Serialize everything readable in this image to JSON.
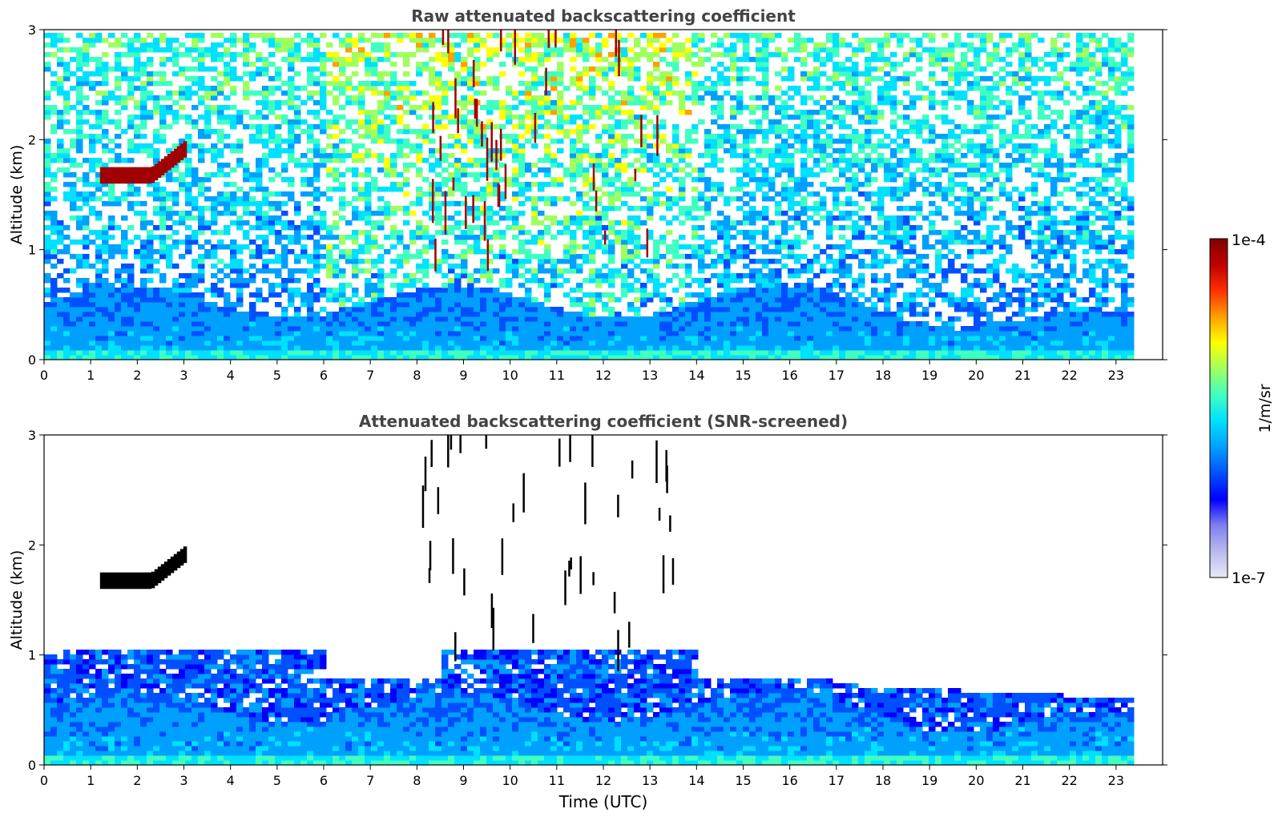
{
  "chart_data": [
    {
      "type": "heatmap",
      "title": "Raw attenuated backscattering coefficient",
      "xlabel": "",
      "ylabel": "Altitude (km)",
      "xlim": [
        0,
        24
      ],
      "ylim": [
        0,
        3
      ],
      "data_x_range": [
        0,
        23.3
      ],
      "xticks": [
        "0",
        "1",
        "2",
        "3",
        "4",
        "5",
        "6",
        "7",
        "8",
        "9",
        "10",
        "11",
        "12",
        "13",
        "14",
        "15",
        "16",
        "17",
        "18",
        "19",
        "20",
        "21",
        "22",
        "23"
      ],
      "yticks": [
        "0",
        "1",
        "2",
        "3"
      ],
      "features": [
        {
          "kind": "cloud_layer",
          "x_range": [
            1.2,
            3.0
          ],
          "alt_km": [
            1.6,
            1.95
          ],
          "level": "high"
        },
        {
          "kind": "convective_streaks",
          "x_range": [
            8.0,
            13.5
          ],
          "alt_km": [
            0.8,
            2.9
          ],
          "level": "high"
        },
        {
          "kind": "boundary_layer",
          "x_range": [
            0,
            23.3
          ],
          "alt_km": [
            0,
            0.6
          ],
          "level": "medium"
        },
        {
          "kind": "noise",
          "x_range": [
            0,
            23.3
          ],
          "alt_km": [
            0.6,
            3.0
          ],
          "level": "speckle"
        }
      ]
    },
    {
      "type": "heatmap",
      "title": "Attenuated backscattering coefficient (SNR-screened)",
      "xlabel": "Time (UTC)",
      "ylabel": "Altitude (km)",
      "xlim": [
        0,
        24
      ],
      "ylim": [
        0,
        3
      ],
      "data_x_range": [
        0,
        23.3
      ],
      "xticks": [
        "0",
        "1",
        "2",
        "3",
        "4",
        "5",
        "6",
        "7",
        "8",
        "9",
        "10",
        "11",
        "12",
        "13",
        "14",
        "15",
        "16",
        "17",
        "18",
        "19",
        "20",
        "21",
        "22",
        "23"
      ],
      "yticks": [
        "0",
        "1",
        "2",
        "3"
      ],
      "features": [
        {
          "kind": "cloud_layer",
          "x_range": [
            1.2,
            3.0
          ],
          "alt_km": [
            1.6,
            1.95
          ],
          "level": "high"
        },
        {
          "kind": "convective_streaks",
          "x_range": [
            8.0,
            13.5
          ],
          "alt_km": [
            0.8,
            2.9
          ],
          "level": "high"
        },
        {
          "kind": "boundary_layer",
          "x_range": [
            0,
            23.3
          ],
          "alt_km": [
            0,
            1.0
          ],
          "level": "medium"
        }
      ]
    }
  ],
  "colorbar": {
    "label": "1/m/sr",
    "max_label": "1e-4",
    "min_label": "1e-7",
    "colors": [
      "#e8e8f8",
      "#b9b9ee",
      "#7f7ff0",
      "#0000ff",
      "#0050ff",
      "#00a0ff",
      "#00e0ff",
      "#40ffc0",
      "#a0ff60",
      "#ffff00",
      "#ffa000",
      "#ff3000",
      "#c00000",
      "#800000"
    ]
  }
}
